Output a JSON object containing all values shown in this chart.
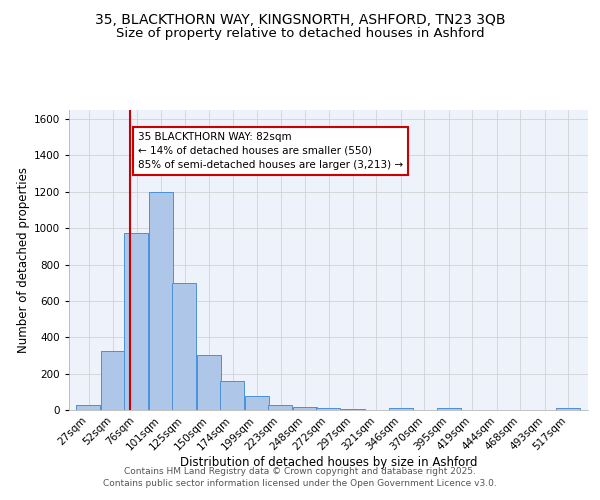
{
  "title_line1": "35, BLACKTHORN WAY, KINGSNORTH, ASHFORD, TN23 3QB",
  "title_line2": "Size of property relative to detached houses in Ashford",
  "xlabel": "Distribution of detached houses by size in Ashford",
  "ylabel": "Number of detached properties",
  "bin_labels": [
    "27sqm",
    "52sqm",
    "76sqm",
    "101sqm",
    "125sqm",
    "150sqm",
    "174sqm",
    "199sqm",
    "223sqm",
    "248sqm",
    "272sqm",
    "297sqm",
    "321sqm",
    "346sqm",
    "370sqm",
    "395sqm",
    "419sqm",
    "444sqm",
    "468sqm",
    "493sqm",
    "517sqm"
  ],
  "bin_edges": [
    27,
    52,
    76,
    101,
    125,
    150,
    174,
    199,
    223,
    248,
    272,
    297,
    321,
    346,
    370,
    395,
    419,
    444,
    468,
    493,
    517
  ],
  "bar_heights": [
    25,
    325,
    975,
    1200,
    700,
    305,
    160,
    75,
    30,
    15,
    10,
    5,
    0,
    10,
    0,
    10,
    0,
    0,
    0,
    0,
    10
  ],
  "bar_color": "#aec6e8",
  "bar_edge_color": "#4a90d9",
  "property_size": 82,
  "vline_color": "#cc0000",
  "annotation_line1": "35 BLACKTHORN WAY: 82sqm",
  "annotation_line2": "← 14% of detached houses are smaller (550)",
  "annotation_line3": "85% of semi-detached houses are larger (3,213) →",
  "annotation_box_color": "#cc0000",
  "ylim": [
    0,
    1650
  ],
  "yticks": [
    0,
    200,
    400,
    600,
    800,
    1000,
    1200,
    1400,
    1600
  ],
  "grid_color": "#cccccc",
  "bg_color": "#eef2fb",
  "footer_line1": "Contains HM Land Registry data © Crown copyright and database right 2025.",
  "footer_line2": "Contains public sector information licensed under the Open Government Licence v3.0.",
  "title_fontsize": 10,
  "subtitle_fontsize": 9.5,
  "axis_label_fontsize": 8.5,
  "tick_fontsize": 7.5,
  "annotation_fontsize": 7.5,
  "footer_fontsize": 6.5
}
